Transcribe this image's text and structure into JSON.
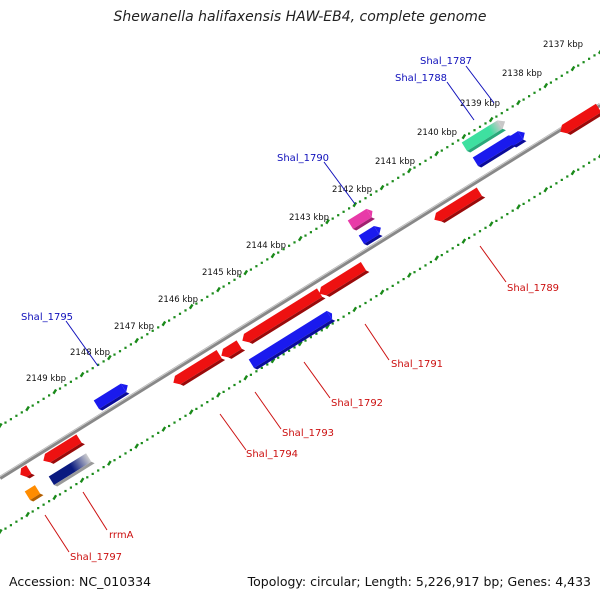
{
  "title": "Shewanella halifaxensis HAW-EB4, complete genome",
  "accession": "Accession: NC_010334",
  "topology": "Topology: circular; Length: 5,226,917 bp; Genes: 4,433",
  "colors": {
    "forward_gene": "#1a1aee",
    "reverse_gene": "#ee1111",
    "rna_gene": "#ff8c00",
    "magenta_gene": "#e83aa8",
    "teal_gene": "#3ee0a0",
    "grey_gene": "#bbbbbb",
    "navy_gene": "#0a1a80",
    "backbone": "#888888",
    "tick": "#1a8a1a",
    "forward_label": "#1010bb",
    "reverse_label": "#cc1010"
  },
  "ticks": [
    "2137 kbp",
    "2138 kbp",
    "2139 kbp",
    "2140 kbp",
    "2141 kbp",
    "2142 kbp",
    "2143 kbp",
    "2144 kbp",
    "2145 kbp",
    "2146 kbp",
    "2147 kbp",
    "2148 kbp",
    "2149 kbp"
  ],
  "forward_labels": [
    "Shal_1787",
    "Shal_1788",
    "Shal_1790",
    "Shal_1795"
  ],
  "reverse_labels": [
    "Shal_1789",
    "Shal_1791",
    "Shal_1792",
    "Shal_1793",
    "Shal_1794",
    "rrmA",
    "Shal_1797"
  ]
}
